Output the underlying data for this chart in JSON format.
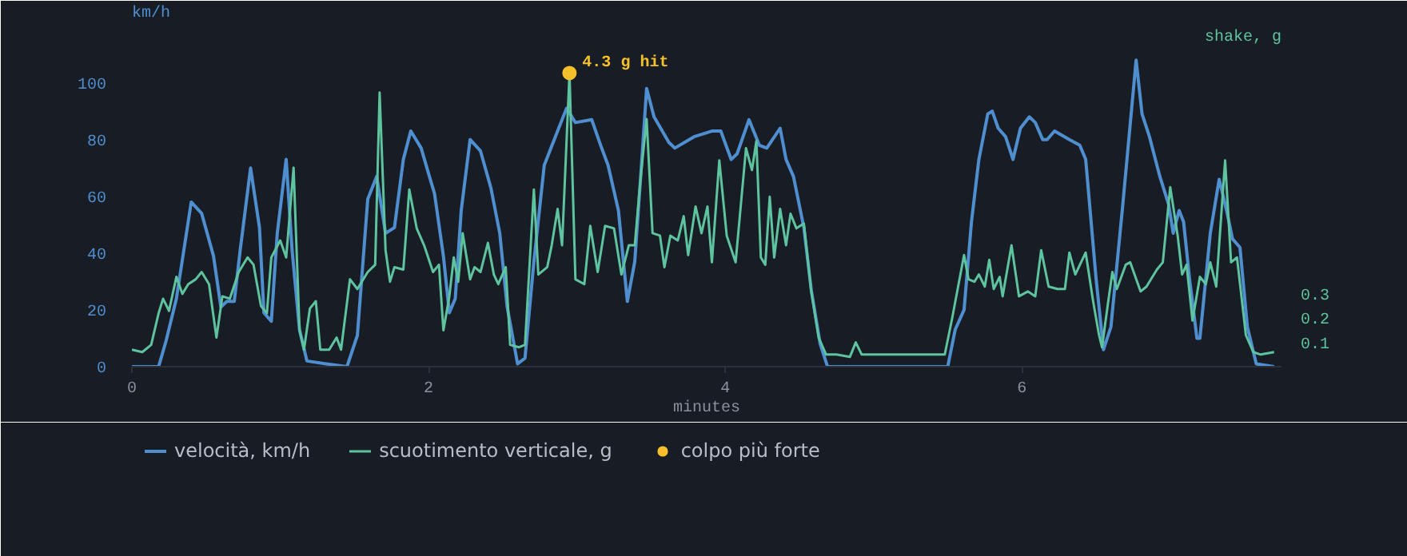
{
  "chart_data": {
    "type": "line",
    "xlabel": "minutes",
    "ylabel": "km/h",
    "y2label": "shake, g",
    "xlim": [
      0,
      7.75
    ],
    "xticks": [
      0,
      2,
      4,
      6
    ],
    "ylim": [
      0,
      112
    ],
    "yticks": [
      0,
      20,
      40,
      60,
      80,
      100
    ],
    "y2lim": [
      0,
      1.31
    ],
    "y2ticks": [
      0.1,
      0.2,
      0.3
    ],
    "grid": false,
    "legend": "bottom",
    "marker": "none",
    "line_style": "solid",
    "annotations": [
      {
        "text": "4.3 g hit",
        "x": 2.95,
        "y": 103.5
      }
    ],
    "series": [
      {
        "name": "velocità, km/h",
        "color": "#4f8fd0",
        "x": [
          0,
          0.18,
          0.23,
          0.3,
          0.4,
          0.47,
          0.55,
          0.6,
          0.64,
          0.69,
          0.73,
          0.8,
          0.86,
          0.89,
          0.94,
          0.98,
          1.04,
          1.08,
          1.13,
          1.18,
          1.31,
          1.45,
          1.52,
          1.59,
          1.65,
          1.71,
          1.77,
          1.83,
          1.88,
          1.95,
          2.0,
          2.04,
          2.1,
          2.14,
          2.18,
          2.22,
          2.28,
          2.35,
          2.42,
          2.48,
          2.53,
          2.6,
          2.65,
          2.71,
          2.78,
          2.87,
          2.93,
          2.99,
          3.1,
          3.16,
          3.21,
          3.28,
          3.34,
          3.39,
          3.43,
          3.47,
          3.52,
          3.62,
          3.66,
          3.79,
          3.91,
          3.97,
          4.04,
          4.08,
          4.16,
          4.23,
          4.28,
          4.37,
          4.41,
          4.46,
          4.53,
          4.58,
          4.64,
          4.69,
          5.5,
          5.55,
          5.61,
          5.66,
          5.71,
          5.77,
          5.8,
          5.84,
          5.89,
          5.94,
          5.99,
          6.05,
          6.09,
          6.14,
          6.17,
          6.22,
          6.32,
          6.39,
          6.43,
          6.5,
          6.55,
          6.6,
          6.68,
          6.77,
          6.81,
          6.86,
          6.93,
          6.99,
          7.02,
          7.06,
          7.09,
          7.13,
          7.18,
          7.2,
          7.27,
          7.33,
          7.38,
          7.42,
          7.47,
          7.52,
          7.58,
          7.7
        ],
        "values": [
          0,
          0,
          9,
          24,
          58,
          54,
          39,
          21,
          23,
          23,
          41,
          70,
          49,
          19,
          16,
          47,
          73,
          41,
          13,
          2,
          1,
          0,
          11,
          59,
          67,
          47,
          49,
          73,
          83,
          77,
          68,
          61,
          39,
          19,
          24,
          55,
          80,
          76,
          63,
          47,
          21,
          1,
          3,
          37,
          71,
          83,
          91,
          86,
          87,
          78,
          71,
          55,
          23,
          37,
          67,
          98,
          88,
          79,
          77,
          81,
          83,
          83,
          73,
          75,
          87,
          78,
          77,
          84,
          73,
          67,
          49,
          27,
          8,
          0,
          0,
          13,
          20,
          51,
          73,
          89,
          90,
          84,
          81,
          73,
          84,
          88,
          86,
          80,
          80,
          83,
          80,
          78,
          73,
          31,
          6,
          14,
          57,
          108,
          89,
          81,
          67,
          57,
          47,
          55,
          51,
          31,
          10,
          10,
          47,
          66,
          55,
          45,
          42,
          14,
          1,
          0
        ]
      },
      {
        "name": "scuotimento verticale, g",
        "color": "#5ec39f",
        "axis": "y2",
        "x": [
          0,
          0.07,
          0.13,
          0.18,
          0.21,
          0.25,
          0.3,
          0.34,
          0.38,
          0.43,
          0.47,
          0.52,
          0.57,
          0.61,
          0.66,
          0.72,
          0.78,
          0.82,
          0.87,
          0.91,
          0.94,
          1.0,
          1.04,
          1.09,
          1.13,
          1.16,
          1.2,
          1.24,
          1.27,
          1.33,
          1.38,
          1.41,
          1.47,
          1.52,
          1.59,
          1.64,
          1.67,
          1.71,
          1.74,
          1.77,
          1.83,
          1.87,
          1.92,
          1.97,
          2.03,
          2.07,
          2.1,
          2.14,
          2.17,
          2.2,
          2.23,
          2.28,
          2.31,
          2.35,
          2.4,
          2.44,
          2.47,
          2.52,
          2.55,
          2.61,
          2.65,
          2.71,
          2.74,
          2.8,
          2.83,
          2.87,
          2.9,
          2.95,
          2.99,
          3.05,
          3.09,
          3.14,
          3.19,
          3.25,
          3.3,
          3.35,
          3.39,
          3.43,
          3.47,
          3.51,
          3.56,
          3.59,
          3.63,
          3.68,
          3.72,
          3.75,
          3.8,
          3.84,
          3.88,
          3.91,
          3.96,
          4.01,
          4.07,
          4.14,
          4.18,
          4.21,
          4.24,
          4.27,
          4.3,
          4.33,
          4.37,
          4.41,
          4.44,
          4.48,
          4.53,
          4.58,
          4.63,
          4.68,
          4.75,
          4.84,
          4.88,
          4.92,
          5.48,
          5.53,
          5.61,
          5.64,
          5.68,
          5.71,
          5.75,
          5.78,
          5.81,
          5.85,
          5.87,
          5.93,
          5.98,
          6.04,
          6.09,
          6.13,
          6.18,
          6.24,
          6.29,
          6.32,
          6.36,
          6.43,
          6.48,
          6.52,
          6.54,
          6.58,
          6.61,
          6.64,
          6.7,
          6.73,
          6.8,
          6.84,
          6.91,
          6.95,
          7.0,
          7.05,
          7.08,
          7.11,
          7.15,
          7.2,
          7.24,
          7.27,
          7.31,
          7.37,
          7.41,
          7.45,
          7.51,
          7.56,
          7.61,
          7.7
        ],
        "values": [
          0.07,
          0.06,
          0.09,
          0.22,
          0.28,
          0.23,
          0.37,
          0.3,
          0.34,
          0.36,
          0.39,
          0.34,
          0.12,
          0.29,
          0.28,
          0.39,
          0.45,
          0.42,
          0.25,
          0.22,
          0.45,
          0.52,
          0.45,
          0.82,
          0.15,
          0.07,
          0.24,
          0.27,
          0.07,
          0.07,
          0.12,
          0.07,
          0.36,
          0.32,
          0.39,
          0.42,
          1.13,
          0.48,
          0.35,
          0.41,
          0.4,
          0.73,
          0.57,
          0.5,
          0.39,
          0.42,
          0.15,
          0.29,
          0.45,
          0.35,
          0.55,
          0.36,
          0.41,
          0.39,
          0.51,
          0.38,
          0.34,
          0.41,
          0.09,
          0.08,
          0.09,
          0.73,
          0.38,
          0.41,
          0.5,
          0.65,
          0.5,
          1.21,
          0.36,
          0.34,
          0.58,
          0.39,
          0.58,
          0.57,
          0.38,
          0.5,
          0.5,
          0.78,
          1.02,
          0.55,
          0.54,
          0.41,
          0.54,
          0.52,
          0.62,
          0.46,
          0.66,
          0.55,
          0.66,
          0.43,
          0.85,
          0.54,
          0.43,
          0.9,
          0.81,
          0.93,
          0.45,
          0.42,
          0.7,
          0.45,
          0.65,
          0.5,
          0.63,
          0.57,
          0.59,
          0.31,
          0.12,
          0.05,
          0.05,
          0.04,
          0.1,
          0.05,
          0.05,
          0.2,
          0.46,
          0.36,
          0.35,
          0.38,
          0.33,
          0.44,
          0.32,
          0.37,
          0.29,
          0.5,
          0.29,
          0.31,
          0.29,
          0.48,
          0.33,
          0.32,
          0.32,
          0.47,
          0.38,
          0.47,
          0.27,
          0.13,
          0.08,
          0.26,
          0.39,
          0.32,
          0.42,
          0.43,
          0.31,
          0.33,
          0.4,
          0.43,
          0.74,
          0.54,
          0.38,
          0.42,
          0.19,
          0.37,
          0.34,
          0.43,
          0.33,
          0.85,
          0.43,
          0.45,
          0.13,
          0.06,
          0.05,
          0.06
        ]
      },
      {
        "name": "colpo più forte",
        "color": "#f5c02a",
        "type": "scatter",
        "marker": "circle",
        "axis": "y2",
        "x": [
          2.95
        ],
        "values": [
          1.21
        ]
      }
    ]
  }
}
